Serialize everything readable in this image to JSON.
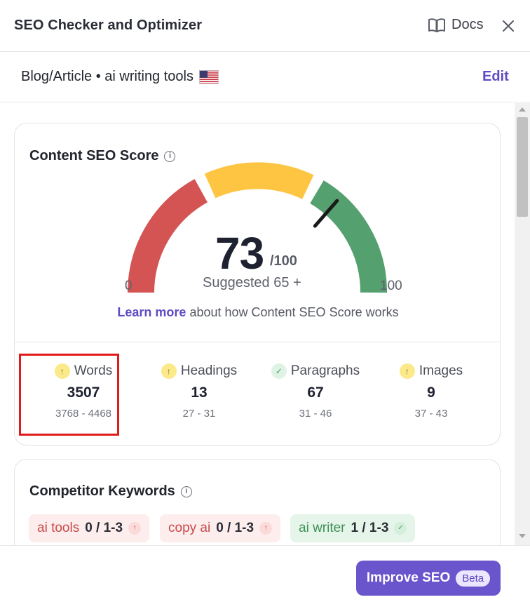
{
  "header": {
    "title": "SEO Checker and Optimizer",
    "docs_label": "Docs"
  },
  "subheader": {
    "breadcrumb": "Blog/Article • ai writing tools",
    "edit_label": "Edit"
  },
  "content_score": {
    "title": "Content SEO Score",
    "score": "73",
    "max": "/100",
    "suggested": "Suggested  65 +",
    "gauge_min": "0",
    "gauge_max": "100",
    "learn_more_link": "Learn more",
    "learn_more_text": " about how Content SEO Score works"
  },
  "stats": [
    {
      "label": "Words",
      "value": "3507",
      "range": "3768 - 4468",
      "status": "up"
    },
    {
      "label": "Headings",
      "value": "13",
      "range": "27 - 31",
      "status": "up"
    },
    {
      "label": "Paragraphs",
      "value": "67",
      "range": "31 - 46",
      "status": "ok"
    },
    {
      "label": "Images",
      "value": "9",
      "range": "37 - 43",
      "status": "up"
    }
  ],
  "competitor_keywords": {
    "title": "Competitor Keywords",
    "chips": [
      {
        "keyword": "ai tools",
        "count": "0 / 1-3",
        "status": "up"
      },
      {
        "keyword": "copy ai",
        "count": "0 / 1-3",
        "status": "up"
      },
      {
        "keyword": "ai writer",
        "count": "1 / 1-3",
        "status": "ok"
      }
    ]
  },
  "footer": {
    "button_label": "Improve SEO",
    "badge": "Beta"
  },
  "colors": {
    "accent": "#6b55cc",
    "gauge_red": "#d45454",
    "gauge_yellow": "#fdc542",
    "gauge_green": "#55a06f"
  }
}
